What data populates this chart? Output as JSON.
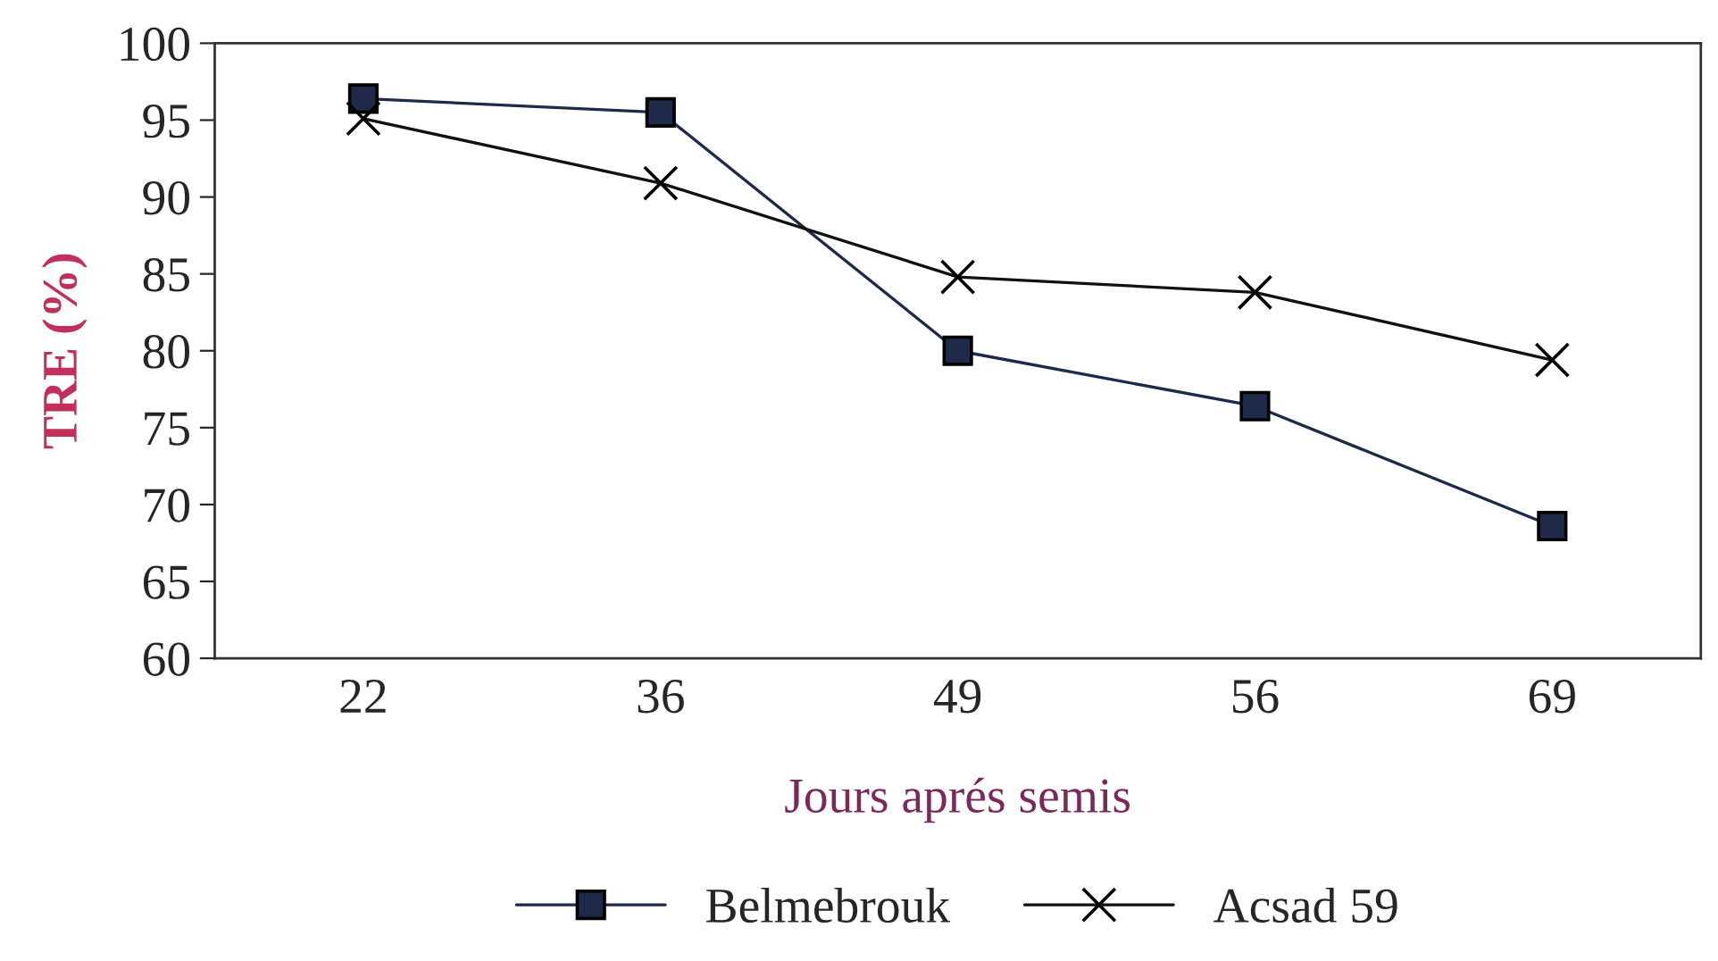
{
  "chart_data": {
    "type": "line",
    "xlabel": "Jours aprés semis",
    "ylabel": "TRE (%)",
    "categories": [
      "22",
      "36",
      "49",
      "56",
      "69"
    ],
    "series": [
      {
        "name": "Belmebrouk",
        "color": "#1f2a4a",
        "marker": "square",
        "values": [
          96.4,
          95.5,
          80,
          76.4,
          68.6
        ]
      },
      {
        "name": "Acsad 59",
        "color": "#111111",
        "marker": "cross",
        "values": [
          95.1,
          90.9,
          84.8,
          83.8,
          79.4
        ]
      }
    ],
    "ylim": [
      60,
      100
    ],
    "yticks": [
      60,
      65,
      70,
      75,
      80,
      85,
      90,
      95,
      100
    ],
    "grid": false,
    "legend": "bottom",
    "line_style": "solid"
  }
}
